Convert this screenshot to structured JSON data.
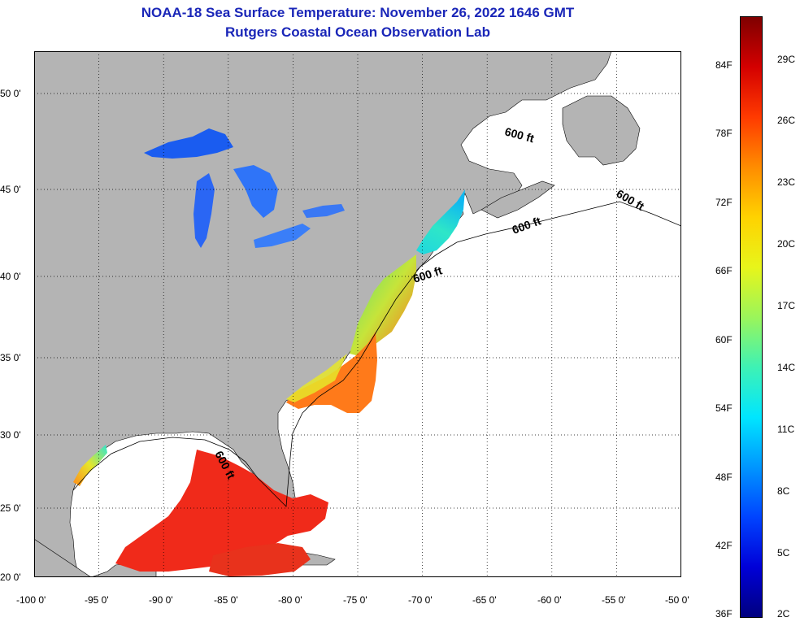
{
  "header": {
    "title": "NOAA-18 Sea Surface Temperature:  November 26, 2022 1646 GMT",
    "subtitle": "Rutgers Coastal Ocean Observation Lab"
  },
  "map": {
    "lat_labels": [
      "50 0'",
      "45 0'",
      "40 0'",
      "35 0'",
      "30 0'",
      "25 0'",
      "20 0'"
    ],
    "lon_labels": [
      "-100 0'",
      "-95 0'",
      "-90 0'",
      "-85 0'",
      "-80 0'",
      "-75 0'",
      "-70 0'",
      "-65 0'",
      "-60 0'",
      "-55 0'",
      "-50 0'"
    ],
    "isobath_label": "600 ft",
    "colors": {
      "land": "#b4b4b4",
      "ocean_nodata": "#ffffff",
      "title": "#1a26b8"
    }
  },
  "colorbar": {
    "fahrenheit": [
      "84F",
      "78F",
      "72F",
      "66F",
      "60F",
      "54F",
      "48F",
      "42F",
      "36F"
    ],
    "celsius": [
      "29C",
      "26C",
      "23C",
      "20C",
      "17C",
      "14C",
      "11C",
      "8C",
      "5C",
      "2C"
    ],
    "gradient": [
      "#7f0000",
      "#d40000",
      "#ff3a00",
      "#ff8c00",
      "#ffd200",
      "#e8f51a",
      "#9bf55a",
      "#3ef2b4",
      "#00e6ff",
      "#0096ff",
      "#0044ff",
      "#0000d8",
      "#00007f"
    ]
  }
}
